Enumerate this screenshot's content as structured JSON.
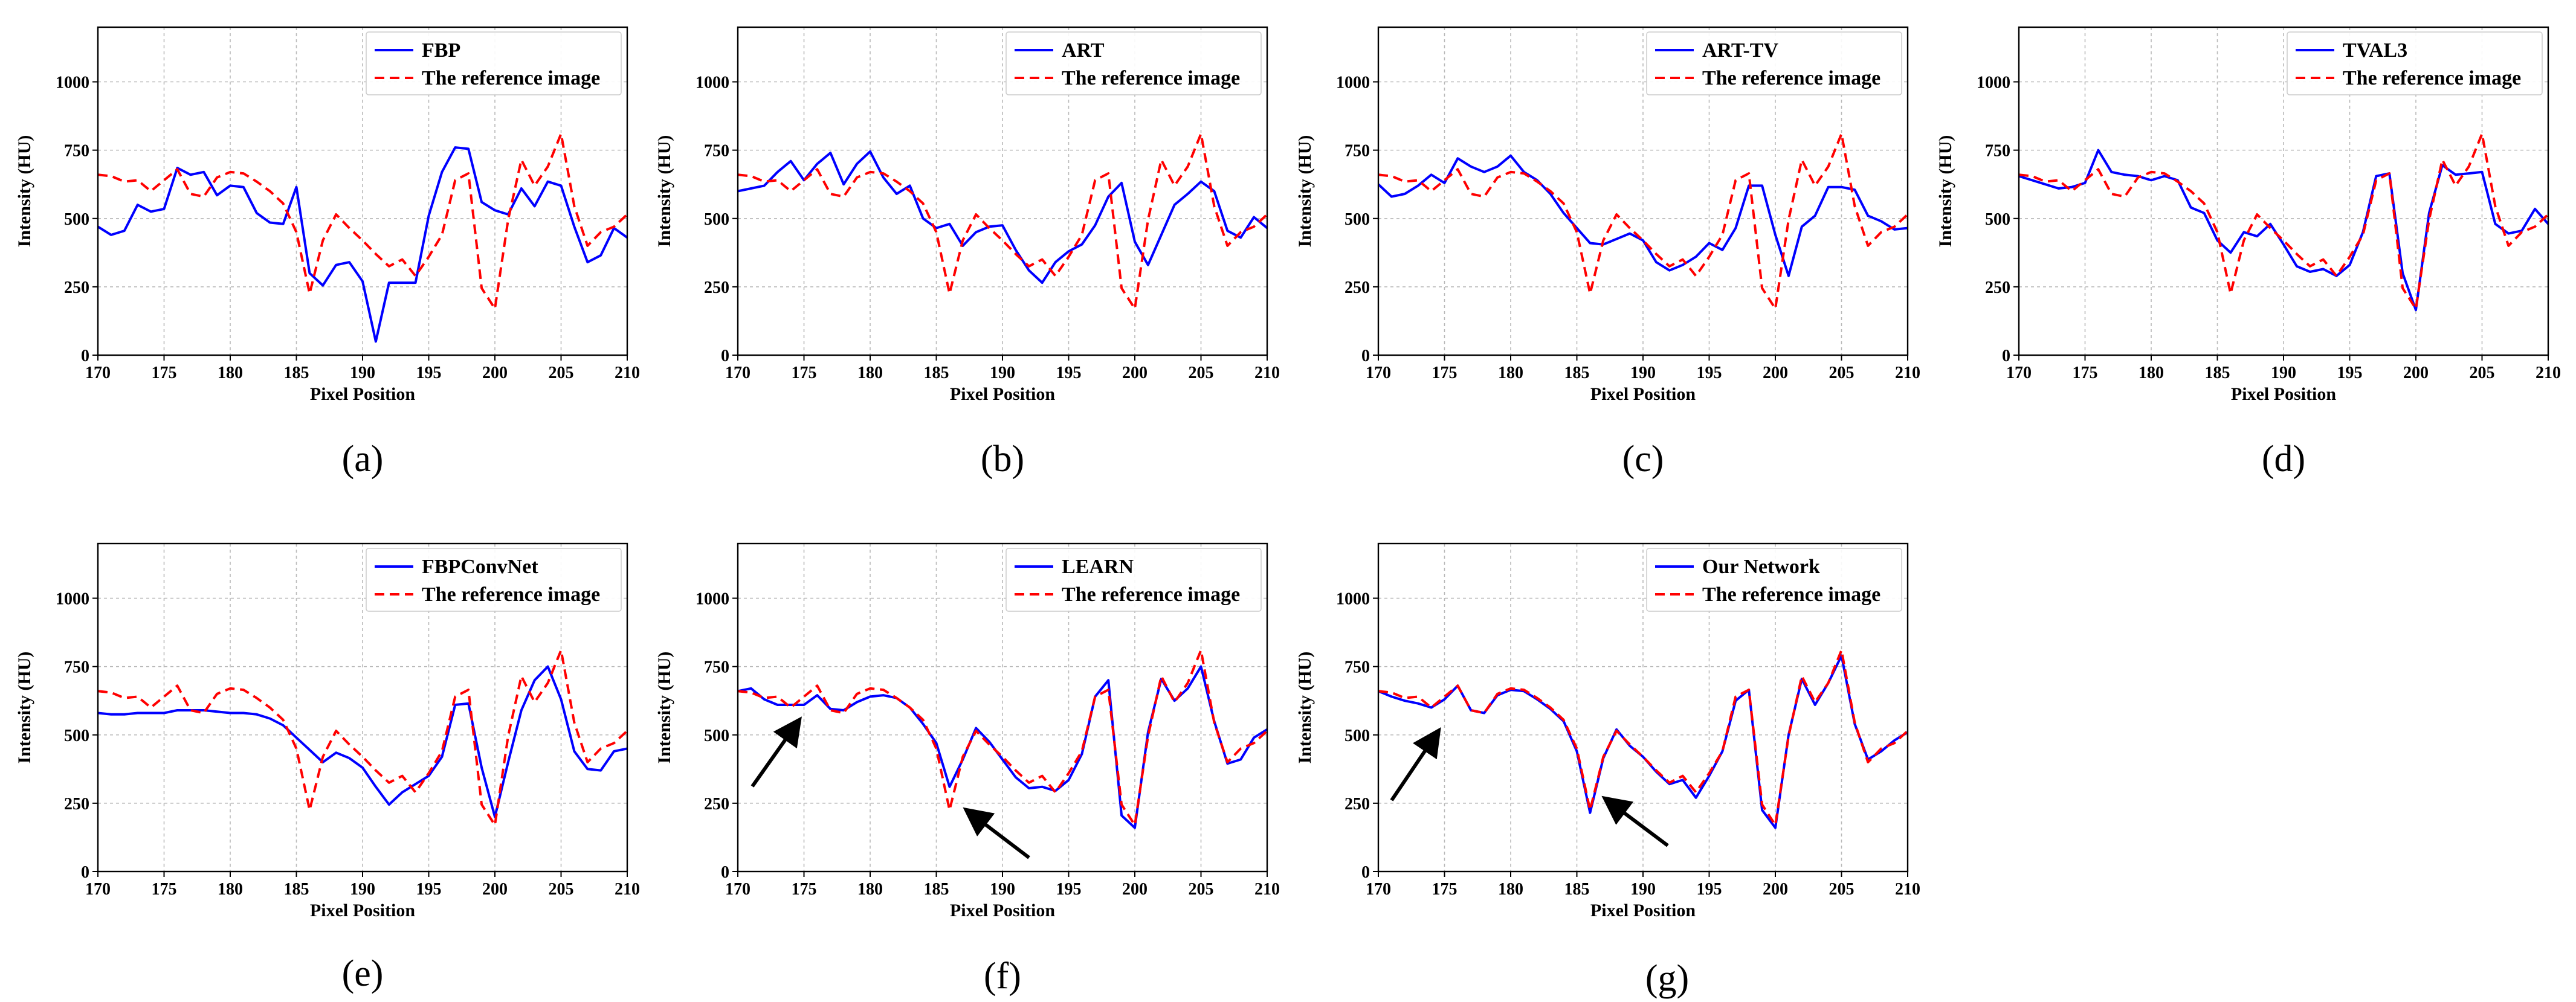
{
  "figure": {
    "background": "#ffffff"
  },
  "colors": {
    "method": "#0000ff",
    "reference": "#ff0000",
    "arrow": "#000000"
  },
  "chart_data": [
    {
      "type": "line",
      "caption": "(a)",
      "xlabel": "Pixel Position",
      "ylabel": "Intensity (HU)",
      "xlim": [
        170,
        210
      ],
      "ylim": [
        0,
        1200
      ],
      "xticks": [
        "170",
        "175",
        "180",
        "185",
        "190",
        "195",
        "200",
        "205",
        "210"
      ],
      "yticks": [
        "0",
        "250",
        "500",
        "750",
        "1000"
      ],
      "grid": true,
      "legend_position": "upper-right",
      "series": [
        {
          "name": "FBP",
          "style": "solid",
          "color": "#0000ff",
          "values": [
            470,
            440,
            455,
            550,
            525,
            535,
            685,
            660,
            670,
            585,
            620,
            615,
            520,
            485,
            480,
            615,
            300,
            255,
            330,
            340,
            270,
            50,
            265,
            265,
            265,
            510,
            670,
            760,
            755,
            560,
            530,
            515,
            610,
            545,
            635,
            620,
            470,
            340,
            365,
            465,
            430
          ]
        },
        {
          "name": "The reference image",
          "style": "dashed",
          "color": "#ff0000",
          "values": [
            660,
            655,
            635,
            640,
            600,
            640,
            680,
            590,
            580,
            650,
            670,
            665,
            635,
            600,
            555,
            450,
            225,
            420,
            515,
            465,
            420,
            370,
            325,
            350,
            290,
            360,
            440,
            640,
            665,
            245,
            170,
            495,
            715,
            620,
            690,
            810,
            545,
            400,
            450,
            470,
            515
          ]
        }
      ]
    },
    {
      "type": "line",
      "caption": "(b)",
      "xlabel": "Pixel Position",
      "ylabel": "Intensity (HU)",
      "xlim": [
        170,
        210
      ],
      "ylim": [
        0,
        1200
      ],
      "xticks": [
        "170",
        "175",
        "180",
        "185",
        "190",
        "195",
        "200",
        "205",
        "210"
      ],
      "yticks": [
        "0",
        "250",
        "500",
        "750",
        "1000"
      ],
      "grid": true,
      "legend_position": "upper-right",
      "series": [
        {
          "name": "ART",
          "style": "solid",
          "color": "#0000ff",
          "values": [
            600,
            610,
            620,
            670,
            710,
            640,
            700,
            740,
            625,
            700,
            745,
            650,
            590,
            620,
            500,
            465,
            480,
            400,
            450,
            470,
            475,
            385,
            310,
            265,
            340,
            380,
            405,
            475,
            580,
            630,
            415,
            330,
            440,
            550,
            590,
            635,
            600,
            455,
            430,
            505,
            465
          ]
        },
        {
          "name": "The reference image",
          "style": "dashed",
          "color": "#ff0000",
          "values": [
            660,
            655,
            635,
            640,
            600,
            640,
            680,
            590,
            580,
            650,
            670,
            665,
            635,
            600,
            555,
            450,
            225,
            420,
            515,
            465,
            420,
            370,
            325,
            350,
            290,
            360,
            440,
            640,
            665,
            245,
            170,
            495,
            715,
            620,
            690,
            810,
            545,
            400,
            450,
            470,
            515
          ]
        }
      ]
    },
    {
      "type": "line",
      "caption": "(c)",
      "xlabel": "Pixel Position",
      "ylabel": "Intensity (HU)",
      "xlim": [
        170,
        210
      ],
      "ylim": [
        0,
        1200
      ],
      "xticks": [
        "170",
        "175",
        "180",
        "185",
        "190",
        "195",
        "200",
        "205",
        "210"
      ],
      "yticks": [
        "0",
        "250",
        "500",
        "750",
        "1000"
      ],
      "grid": true,
      "legend_position": "upper-right",
      "series": [
        {
          "name": "ART-TV",
          "style": "solid",
          "color": "#0000ff",
          "values": [
            625,
            580,
            590,
            620,
            660,
            630,
            720,
            690,
            670,
            690,
            730,
            670,
            640,
            590,
            520,
            465,
            410,
            405,
            425,
            445,
            420,
            340,
            310,
            330,
            360,
            410,
            385,
            465,
            620,
            620,
            440,
            290,
            470,
            510,
            615,
            615,
            605,
            510,
            490,
            460,
            465
          ]
        },
        {
          "name": "The reference image",
          "style": "dashed",
          "color": "#ff0000",
          "values": [
            660,
            655,
            635,
            640,
            600,
            640,
            680,
            590,
            580,
            650,
            670,
            665,
            635,
            600,
            555,
            450,
            225,
            420,
            515,
            465,
            420,
            370,
            325,
            350,
            290,
            360,
            440,
            640,
            665,
            245,
            170,
            495,
            715,
            620,
            690,
            810,
            545,
            400,
            450,
            470,
            515
          ]
        }
      ]
    },
    {
      "type": "line",
      "caption": "(d)",
      "xlabel": "Pixel Position",
      "ylabel": "Intensity (HU)",
      "xlim": [
        170,
        210
      ],
      "ylim": [
        0,
        1200
      ],
      "xticks": [
        "170",
        "175",
        "180",
        "185",
        "190",
        "195",
        "200",
        "205",
        "210"
      ],
      "yticks": [
        "0",
        "250",
        "500",
        "750",
        "1000"
      ],
      "grid": true,
      "legend_position": "upper-right",
      "series": [
        {
          "name": "TVAL3",
          "style": "solid",
          "color": "#0000ff",
          "values": [
            655,
            640,
            625,
            610,
            615,
            630,
            750,
            670,
            660,
            655,
            640,
            655,
            640,
            540,
            520,
            420,
            375,
            450,
            435,
            480,
            405,
            325,
            305,
            315,
            290,
            330,
            450,
            655,
            665,
            300,
            165,
            520,
            695,
            660,
            665,
            670,
            480,
            445,
            455,
            535,
            480
          ]
        },
        {
          "name": "The reference image",
          "style": "dashed",
          "color": "#ff0000",
          "values": [
            660,
            655,
            635,
            640,
            600,
            640,
            680,
            590,
            580,
            650,
            670,
            665,
            635,
            600,
            555,
            450,
            225,
            420,
            515,
            465,
            420,
            370,
            325,
            350,
            290,
            360,
            440,
            640,
            665,
            245,
            170,
            495,
            715,
            620,
            690,
            810,
            545,
            400,
            450,
            470,
            515
          ]
        }
      ]
    },
    {
      "type": "line",
      "caption": "(e)",
      "xlabel": "Pixel Position",
      "ylabel": "Intensity (HU)",
      "xlim": [
        170,
        210
      ],
      "ylim": [
        0,
        1200
      ],
      "xticks": [
        "170",
        "175",
        "180",
        "185",
        "190",
        "195",
        "200",
        "205",
        "210"
      ],
      "yticks": [
        "0",
        "250",
        "500",
        "750",
        "1000"
      ],
      "grid": true,
      "legend_position": "upper-right",
      "series": [
        {
          "name": "FBPConvNet",
          "style": "solid",
          "color": "#0000ff",
          "values": [
            580,
            575,
            575,
            580,
            580,
            580,
            590,
            590,
            590,
            585,
            580,
            580,
            575,
            560,
            535,
            490,
            445,
            400,
            435,
            415,
            380,
            310,
            245,
            290,
            320,
            350,
            420,
            610,
            615,
            380,
            200,
            400,
            590,
            700,
            750,
            630,
            440,
            375,
            370,
            440,
            450
          ]
        },
        {
          "name": "The reference image",
          "style": "dashed",
          "color": "#ff0000",
          "values": [
            660,
            655,
            635,
            640,
            600,
            640,
            680,
            590,
            580,
            650,
            670,
            665,
            635,
            600,
            555,
            450,
            225,
            420,
            515,
            465,
            420,
            370,
            325,
            350,
            290,
            360,
            440,
            640,
            665,
            245,
            170,
            495,
            715,
            620,
            690,
            810,
            545,
            400,
            450,
            470,
            515
          ]
        }
      ]
    },
    {
      "type": "line",
      "caption": "(f)",
      "xlabel": "Pixel Position",
      "ylabel": "Intensity (HU)",
      "xlim": [
        170,
        210
      ],
      "ylim": [
        0,
        1200
      ],
      "xticks": [
        "170",
        "175",
        "180",
        "185",
        "190",
        "195",
        "200",
        "205",
        "210"
      ],
      "yticks": [
        "0",
        "250",
        "500",
        "750",
        "1000"
      ],
      "grid": true,
      "legend_position": "upper-right",
      "annotations": [
        "arrow near pixel 174",
        "arrow near pixel 187"
      ],
      "series": [
        {
          "name": "LEARN",
          "style": "solid",
          "color": "#0000ff",
          "values": [
            660,
            670,
            630,
            610,
            610,
            610,
            645,
            595,
            590,
            620,
            640,
            645,
            635,
            600,
            540,
            470,
            310,
            410,
            525,
            475,
            410,
            345,
            305,
            310,
            295,
            335,
            430,
            640,
            700,
            205,
            160,
            510,
            705,
            625,
            670,
            750,
            550,
            395,
            410,
            490,
            520
          ]
        },
        {
          "name": "The reference image",
          "style": "dashed",
          "color": "#ff0000",
          "values": [
            660,
            655,
            635,
            640,
            600,
            640,
            680,
            590,
            580,
            650,
            670,
            665,
            635,
            600,
            555,
            450,
            225,
            420,
            515,
            465,
            420,
            370,
            325,
            350,
            290,
            360,
            440,
            640,
            665,
            245,
            170,
            495,
            715,
            620,
            690,
            810,
            545,
            400,
            450,
            470,
            515
          ]
        }
      ]
    },
    {
      "type": "line",
      "caption": "(g)",
      "xlabel": "Pixel Position",
      "ylabel": "Intensity (HU)",
      "xlim": [
        170,
        210
      ],
      "ylim": [
        0,
        1200
      ],
      "xticks": [
        "170",
        "175",
        "180",
        "185",
        "190",
        "195",
        "200",
        "205",
        "210"
      ],
      "yticks": [
        "0",
        "250",
        "500",
        "750",
        "1000"
      ],
      "grid": true,
      "legend_position": "upper-right",
      "annotations": [
        "arrow near pixel 174",
        "arrow near pixel 187"
      ],
      "series": [
        {
          "name": "Our Network",
          "style": "solid",
          "color": "#0000ff",
          "values": [
            660,
            640,
            625,
            615,
            600,
            630,
            680,
            590,
            580,
            645,
            665,
            660,
            630,
            595,
            550,
            440,
            215,
            415,
            520,
            460,
            420,
            365,
            320,
            335,
            270,
            350,
            440,
            625,
            665,
            225,
            160,
            500,
            705,
            610,
            690,
            790,
            540,
            410,
            440,
            480,
            510
          ]
        },
        {
          "name": "The reference image",
          "style": "dashed",
          "color": "#ff0000",
          "values": [
            660,
            655,
            635,
            640,
            600,
            640,
            680,
            590,
            580,
            650,
            670,
            665,
            635,
            600,
            555,
            450,
            225,
            420,
            515,
            465,
            420,
            370,
            325,
            350,
            290,
            360,
            440,
            640,
            665,
            245,
            170,
            495,
            715,
            620,
            690,
            810,
            545,
            400,
            450,
            470,
            515
          ]
        }
      ]
    }
  ]
}
